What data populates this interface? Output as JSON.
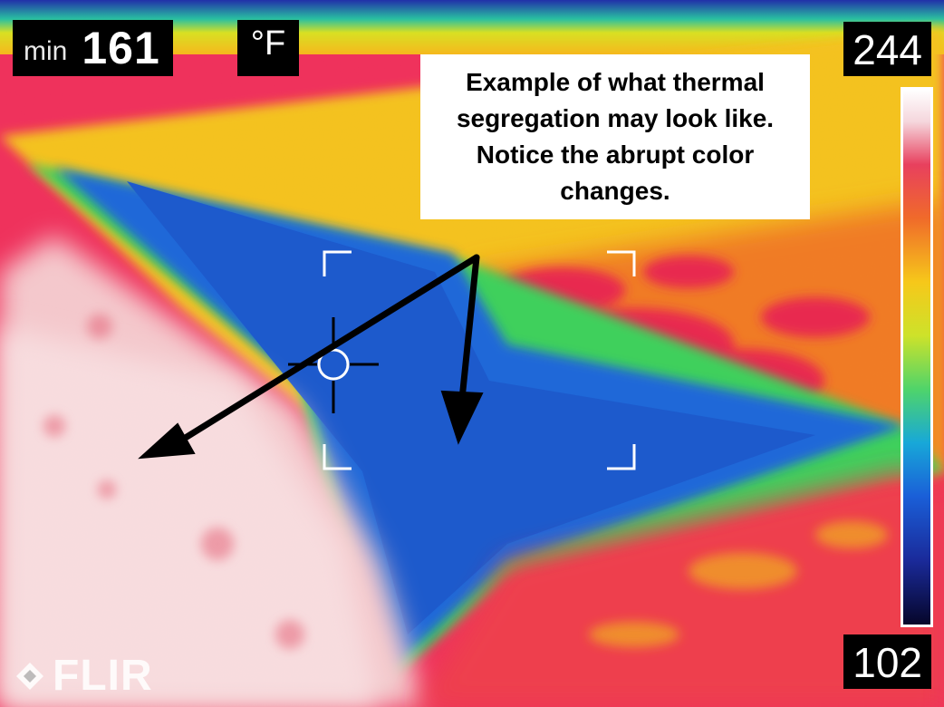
{
  "readout": {
    "min_label": "min",
    "min_value": "161",
    "unit": "°F"
  },
  "scale": {
    "max": "244",
    "min": "102",
    "palette": [
      "#ffffff",
      "#e8405e",
      "#f06a2a",
      "#f6c81a",
      "#4fd46a",
      "#18a8d8",
      "#1a5fd8",
      "#06062a"
    ]
  },
  "callout": {
    "text": "Example of what thermal segregation may look like.  Notice the abrupt color changes."
  },
  "logo": {
    "text": "FLIR"
  },
  "icons": [
    "crosshair-icon",
    "arrow-icon",
    "flir-logo-icon"
  ]
}
